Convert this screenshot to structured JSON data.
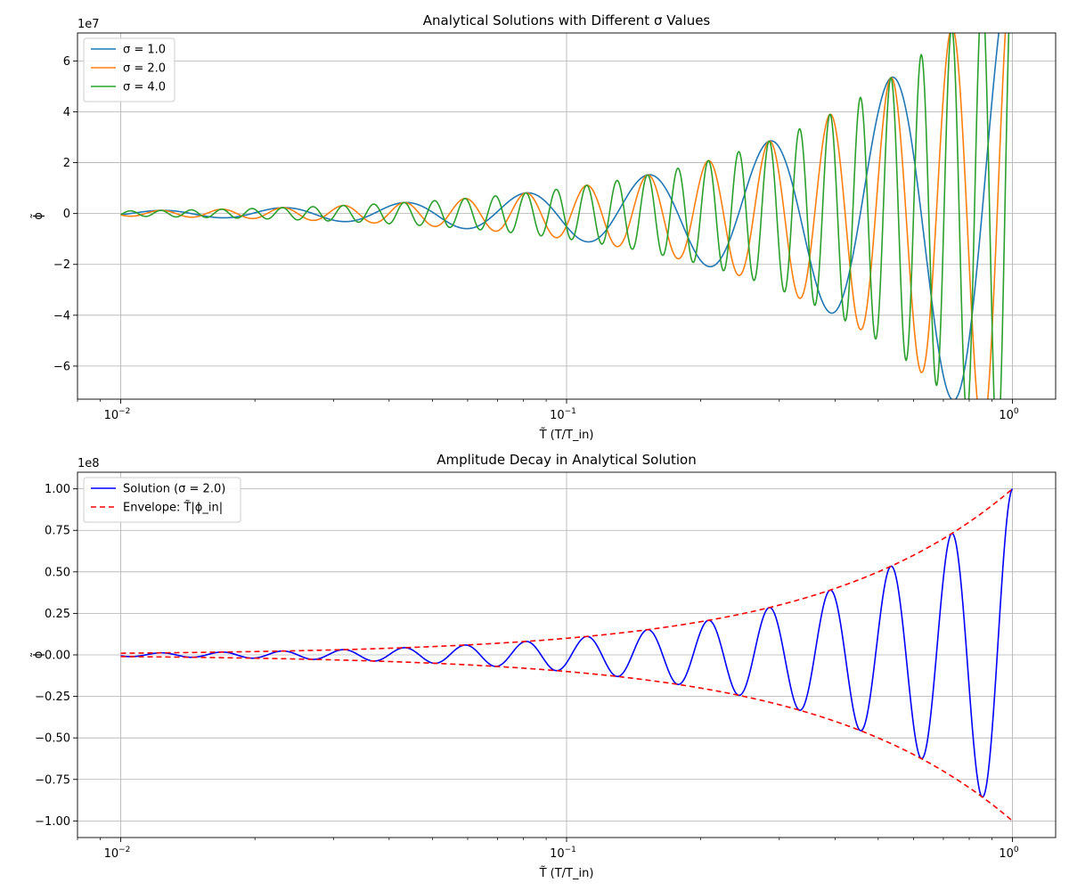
{
  "chart_data": [
    {
      "type": "line",
      "title": "Analytical Solutions with Different σ Values",
      "xlabel": "T̃ (T/T_in)",
      "ylabel": "ϕ̃",
      "x_scale": "log",
      "xlim": [
        0.008,
        1.25
      ],
      "x_ticks": [
        {
          "value": 0.01,
          "base": "10",
          "exp": "−2"
        },
        {
          "value": 0.1,
          "base": "10",
          "exp": "−1"
        },
        {
          "value": 1,
          "base": "10",
          "exp": "0"
        }
      ],
      "ylim": [
        -73000000.0,
        71000000.0
      ],
      "y_ticks": [
        {
          "value": -60000000.0,
          "label": "−6"
        },
        {
          "value": -40000000.0,
          "label": "−4"
        },
        {
          "value": -20000000.0,
          "label": "−2"
        },
        {
          "value": 0,
          "label": "0"
        },
        {
          "value": 20000000.0,
          "label": "2"
        },
        {
          "value": 40000000.0,
          "label": "4"
        },
        {
          "value": 60000000.0,
          "label": "6"
        }
      ],
      "y_offset_label": "1e7",
      "grid": true,
      "legend_position": "top-left",
      "series": [
        {
          "name": "σ = 1.0",
          "color": "#1f77b4",
          "model": {
            "A": 100000000.0,
            "omega": 1.0,
            "phase": 0.0
          }
        },
        {
          "name": "σ = 2.0",
          "color": "#ff7f0e",
          "model": {
            "A": 100000000.0,
            "omega": 2.0,
            "phase": 0.0
          }
        },
        {
          "name": "σ = 4.0",
          "color": "#2ca02c",
          "model": {
            "A": 100000000.0,
            "omega": 4.0,
            "phase": 0.0
          }
        }
      ]
    },
    {
      "type": "line",
      "title": "Amplitude Decay in Analytical Solution",
      "xlabel": "T̃ (T/T_in)",
      "ylabel": "ϕ̃",
      "x_scale": "log",
      "xlim": [
        0.008,
        1.25
      ],
      "x_ticks": [
        {
          "value": 0.01,
          "base": "10",
          "exp": "−2"
        },
        {
          "value": 0.1,
          "base": "10",
          "exp": "−1"
        },
        {
          "value": 1,
          "base": "10",
          "exp": "0"
        }
      ],
      "ylim": [
        -110000000.0,
        110000000.0
      ],
      "y_ticks": [
        {
          "value": -100000000.0,
          "label": "−1.00"
        },
        {
          "value": -75000000.0,
          "label": "−0.75"
        },
        {
          "value": -50000000.0,
          "label": "−0.50"
        },
        {
          "value": -25000000.0,
          "label": "−0.25"
        },
        {
          "value": 0,
          "label": "0.00"
        },
        {
          "value": 25000000.0,
          "label": "0.25"
        },
        {
          "value": 50000000.0,
          "label": "0.50"
        },
        {
          "value": 75000000.0,
          "label": "0.75"
        },
        {
          "value": 100000000.0,
          "label": "1.00"
        }
      ],
      "y_offset_label": "1e8",
      "grid": true,
      "legend_position": "top-left",
      "series": [
        {
          "name": "Solution (σ = 2.0)",
          "color": "#0000ff",
          "dash": "",
          "model": {
            "A": 100000000.0,
            "omega": 2.0,
            "phase": 0.0
          }
        },
        {
          "name": "Envelope: T̃|ϕ_in|",
          "color": "#ff0000",
          "dash": "6,4",
          "model": {
            "A": 100000000.0,
            "envelope": 1
          }
        },
        {
          "name": "",
          "color": "#ff0000",
          "dash": "6,4",
          "model": {
            "A": 100000000.0,
            "envelope": -1
          }
        }
      ]
    }
  ]
}
